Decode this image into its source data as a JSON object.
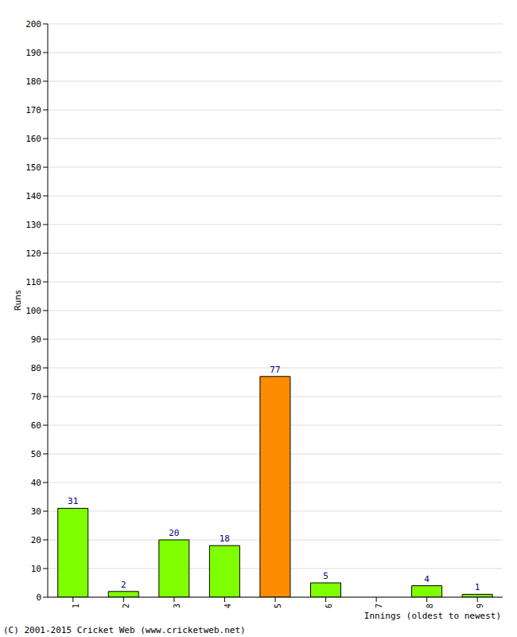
{
  "chart_data": {
    "type": "bar",
    "categories": [
      "1",
      "2",
      "3",
      "4",
      "5",
      "6",
      "7",
      "8",
      "9"
    ],
    "values": [
      31,
      2,
      20,
      18,
      77,
      5,
      0,
      4,
      1
    ],
    "colors": [
      "#80ff00",
      "#80ff00",
      "#80ff00",
      "#80ff00",
      "#ff8c00",
      "#80ff00",
      "#80ff00",
      "#80ff00",
      "#80ff00"
    ],
    "ylim": [
      0,
      200
    ],
    "yticks": [
      0,
      10,
      20,
      30,
      40,
      50,
      60,
      70,
      80,
      90,
      100,
      110,
      120,
      130,
      140,
      150,
      160,
      170,
      180,
      190,
      200
    ],
    "grid": true,
    "data_labels": true,
    "xlabel": "Innings (oldest to newest)",
    "ylabel": "Runs",
    "annotations": [
      "(C) 2001-2015 Cricket Web (www.cricketweb.net)"
    ]
  }
}
